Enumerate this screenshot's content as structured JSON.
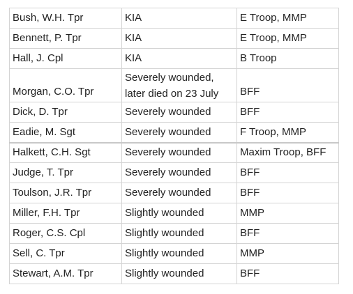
{
  "table": {
    "rows": [
      {
        "name": "Bush, W.H. Tpr",
        "status": "KIA",
        "unit": "E Troop, MMP"
      },
      {
        "name": "Bennett, P. Tpr",
        "status": "KIA",
        "unit": "E Troop, MMP"
      },
      {
        "name": "Hall, J. Cpl",
        "status": "KIA",
        "unit": "B Troop"
      },
      {
        "name": "Morgan, C.O. Tpr",
        "status_line1": "Severely wounded,",
        "status_line2": "later died on 23 July",
        "unit": "BFF"
      },
      {
        "name": "Dick, D. Tpr",
        "status": "Severely wounded",
        "unit": "BFF"
      },
      {
        "name": "Eadie, M. Sgt",
        "status": "Severely wounded",
        "unit": "F Troop, MMP"
      },
      {
        "name": "Halkett, C.H. Sgt",
        "status": "Severely wounded",
        "unit": "Maxim Troop, BFF"
      },
      {
        "name": "Judge, T. Tpr",
        "status": "Severely wounded",
        "unit": "BFF"
      },
      {
        "name": "Toulson, J.R. Tpr",
        "status": "Severely wounded",
        "unit": "BFF"
      },
      {
        "name": "Miller, F.H. Tpr",
        "status": "Slightly wounded",
        "unit": "MMP"
      },
      {
        "name": "Roger, C.S. Cpl",
        "status": "Slightly wounded",
        "unit": "BFF"
      },
      {
        "name": "Sell, C. Tpr",
        "status": "Slightly wounded",
        "unit": "MMP"
      },
      {
        "name": "Stewart, A.M. Tpr",
        "status": "Slightly wounded",
        "unit": "BFF"
      }
    ]
  }
}
